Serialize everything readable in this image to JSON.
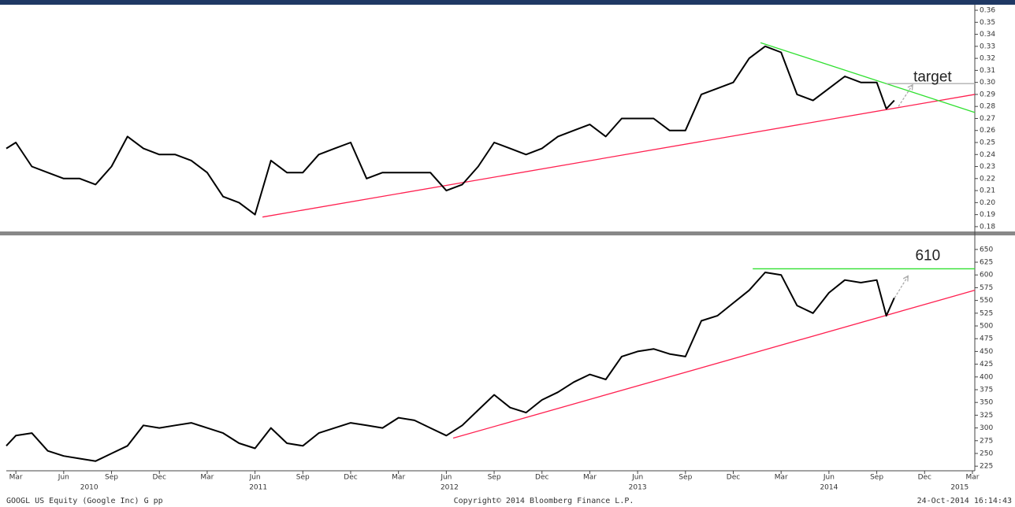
{
  "chart_data": [
    {
      "type": "line",
      "x": [
        1.4,
        2,
        3,
        4,
        5,
        6,
        7,
        8,
        9,
        10,
        11,
        12,
        13,
        14,
        15,
        16,
        17,
        18,
        19,
        20,
        21,
        22,
        23,
        24,
        25,
        26,
        27,
        28,
        29,
        30,
        31,
        32,
        33,
        34,
        35,
        36,
        37,
        38,
        39,
        40,
        41,
        42,
        43,
        44,
        45,
        46,
        47,
        48,
        49,
        50,
        51,
        52,
        53,
        54,
        55,
        56,
        56.6,
        57.1
      ],
      "series": [
        {
          "color": "#000000",
          "values": [
            0.245,
            0.25,
            0.23,
            0.225,
            0.22,
            0.22,
            0.215,
            0.23,
            0.255,
            0.245,
            0.24,
            0.24,
            0.235,
            0.225,
            0.205,
            0.2,
            0.19,
            0.235,
            0.225,
            0.225,
            0.24,
            0.245,
            0.25,
            0.22,
            0.225,
            0.225,
            0.225,
            0.225,
            0.21,
            0.215,
            0.23,
            0.25,
            0.245,
            0.24,
            0.245,
            0.255,
            0.26,
            0.265,
            0.255,
            0.27,
            0.27,
            0.27,
            0.26,
            0.26,
            0.29,
            0.295,
            0.3,
            0.32,
            0.33,
            0.325,
            0.29,
            0.285,
            0.295,
            0.305,
            0.3,
            0.3,
            0.278,
            0.285
          ]
        }
      ],
      "xlim": [
        1.4,
        62.15
      ],
      "ylim": [
        0.176,
        0.3633
      ],
      "yticks": [
        0.18,
        0.19,
        {
          "value": 0.2,
          "label": "0.20"
        },
        0.21,
        0.22,
        0.23,
        0.24,
        0.25,
        0.26,
        0.27,
        0.28,
        0.29,
        {
          "value": 0.3,
          "label": "0.30"
        },
        0.31,
        0.32,
        0.33,
        0.34,
        0.35,
        0.36
      ],
      "lines": [
        {
          "color": "#ff2050",
          "x": [
            17.47,
            62.15
          ],
          "y": [
            0.188,
            0.29
          ]
        },
        {
          "color": "#30e030",
          "x": [
            48.71,
            62.15
          ],
          "y": [
            0.333,
            0.275
          ]
        },
        {
          "color": "#b0b0b0",
          "x": [
            56.62,
            62.15
          ],
          "y": [
            0.299,
            0.299
          ]
        }
      ],
      "arrow": {
        "x": [
          57.36,
          58.25
        ],
        "y": [
          0.28,
          0.298
        ]
      },
      "annotation": {
        "text": "target",
        "x": 59.5,
        "y": 0.304
      }
    },
    {
      "type": "line",
      "x": [
        1.4,
        2,
        3,
        4,
        5,
        6,
        7,
        8,
        9,
        10,
        11,
        12,
        13,
        14,
        15,
        16,
        17,
        18,
        19,
        20,
        21,
        22,
        23,
        24,
        25,
        26,
        27,
        28,
        29,
        30,
        31,
        32,
        33,
        34,
        35,
        36,
        37,
        38,
        39,
        40,
        41,
        42,
        43,
        44,
        45,
        46,
        47,
        48,
        49,
        50,
        51,
        52,
        53,
        54,
        55,
        56,
        56.6,
        57.1
      ],
      "series": [
        {
          "color": "#000000",
          "values": [
            265,
            285,
            290,
            255,
            245,
            240,
            235,
            250,
            265,
            305,
            300,
            305,
            310,
            300,
            290,
            270,
            260,
            300,
            270,
            265,
            290,
            300,
            310,
            305,
            300,
            320,
            315,
            300,
            285,
            305,
            335,
            365,
            340,
            330,
            355,
            370,
            390,
            405,
            395,
            440,
            450,
            455,
            445,
            440,
            510,
            520,
            545,
            570,
            605,
            600,
            540,
            525,
            565,
            590,
            585,
            590,
            520,
            555
          ]
        }
      ],
      "xlim": [
        1.4,
        62.15
      ],
      "ylim": [
        216,
        676
      ],
      "yticks": [
        225,
        250,
        275,
        300,
        325,
        350,
        375,
        400,
        425,
        450,
        475,
        500,
        525,
        550,
        575,
        600,
        625,
        650
      ],
      "lines": [
        {
          "color": "#ff2050",
          "x": [
            29.43,
            62.15
          ],
          "y": [
            280,
            570
          ]
        },
        {
          "color": "#30e030",
          "x": [
            48.22,
            62.15
          ],
          "y": [
            612,
            612
          ]
        }
      ],
      "arrow": {
        "x": [
          57.12,
          57.96
        ],
        "y": [
          555,
          598
        ]
      },
      "annotation": {
        "text": "610",
        "x": 59.2,
        "y": 637
      },
      "xticks": [
        {
          "value": 2,
          "label": "Mar"
        },
        {
          "value": 5,
          "label": "Jun"
        },
        {
          "value": 8,
          "label": "Sep"
        },
        {
          "value": 11,
          "label": "Dec"
        },
        {
          "value": 14,
          "label": "Mar"
        },
        {
          "value": 17,
          "label": "Jun"
        },
        {
          "value": 20,
          "label": "Sep"
        },
        {
          "value": 23,
          "label": "Dec"
        },
        {
          "value": 26,
          "label": "Mar"
        },
        {
          "value": 29,
          "label": "Jun"
        },
        {
          "value": 32,
          "label": "Sep"
        },
        {
          "value": 35,
          "label": "Dec"
        },
        {
          "value": 38,
          "label": "Mar"
        },
        {
          "value": 41,
          "label": "Jun"
        },
        {
          "value": 44,
          "label": "Sep"
        },
        {
          "value": 47,
          "label": "Dec"
        },
        {
          "value": 50,
          "label": "Mar"
        },
        {
          "value": 53,
          "label": "Jun"
        },
        {
          "value": 56,
          "label": "Sep"
        },
        {
          "value": 59,
          "label": "Dec"
        },
        {
          "value": 62,
          "label": "Mar"
        }
      ],
      "year_ticks": [
        {
          "value": 6.6,
          "label": "2010"
        },
        {
          "value": 17.2,
          "label": "2011"
        },
        {
          "value": 29.2,
          "label": "2012"
        },
        {
          "value": 41,
          "label": "2013"
        },
        {
          "value": 53,
          "label": "2014"
        },
        {
          "value": 61.2,
          "label": "2015"
        }
      ]
    }
  ],
  "footer": {
    "left": "GOOGL US Equity (Google Inc) G pp",
    "center": "Copyright© 2014 Bloomberg Finance L.P.",
    "right": "24-Oct-2014 16:14:43"
  }
}
